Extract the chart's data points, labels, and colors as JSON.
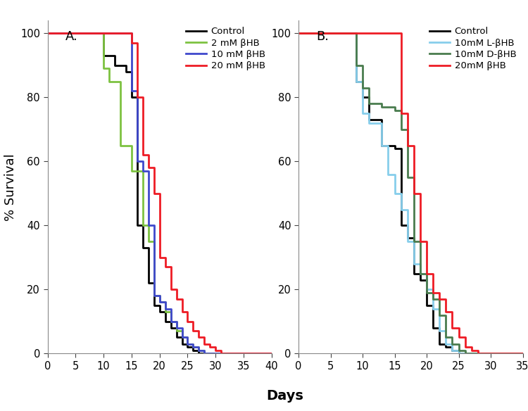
{
  "panel_A": {
    "title": "A.",
    "curves": [
      {
        "label": "Control",
        "color": "#000000",
        "lw": 2.0,
        "x": [
          0,
          10,
          10,
          12,
          12,
          14,
          14,
          15,
          15,
          16,
          16,
          17,
          17,
          18,
          18,
          19,
          19,
          20,
          20,
          21,
          21,
          22,
          22,
          23,
          23,
          24,
          24,
          25,
          25,
          26,
          26,
          27,
          27,
          28,
          28,
          29,
          29,
          30,
          30,
          40
        ],
        "y": [
          100,
          100,
          93,
          93,
          90,
          90,
          88,
          88,
          80,
          80,
          40,
          40,
          33,
          33,
          22,
          22,
          15,
          15,
          13,
          13,
          10,
          10,
          8,
          8,
          5,
          5,
          3,
          3,
          2,
          2,
          1,
          1,
          0,
          0,
          0,
          0,
          0,
          0,
          0,
          0
        ]
      },
      {
        "label": "2 mM βHB",
        "color": "#7dc241",
        "lw": 2.0,
        "x": [
          0,
          10,
          10,
          11,
          11,
          13,
          13,
          15,
          15,
          17,
          17,
          18,
          18,
          19,
          19,
          20,
          20,
          21,
          21,
          22,
          22,
          23,
          23,
          24,
          24,
          25,
          25,
          26,
          26,
          27,
          27,
          28,
          28,
          29,
          29,
          30,
          30,
          31,
          31,
          32,
          32,
          40
        ],
        "y": [
          100,
          100,
          89,
          89,
          85,
          85,
          65,
          65,
          57,
          57,
          40,
          40,
          35,
          35,
          18,
          18,
          16,
          16,
          13,
          13,
          10,
          10,
          7,
          7,
          5,
          5,
          3,
          3,
          2,
          2,
          1,
          1,
          0,
          0,
          0,
          0,
          0,
          0,
          0,
          0,
          0,
          0
        ]
      },
      {
        "label": "10 mM βHB",
        "color": "#3f48cc",
        "lw": 2.0,
        "x": [
          0,
          15,
          15,
          16,
          16,
          17,
          17,
          18,
          18,
          19,
          19,
          20,
          20,
          21,
          21,
          22,
          22,
          23,
          23,
          24,
          24,
          25,
          25,
          26,
          26,
          27,
          27,
          28,
          28,
          29,
          29,
          30,
          30,
          31,
          31,
          32,
          32,
          40
        ],
        "y": [
          100,
          100,
          82,
          82,
          60,
          60,
          57,
          57,
          40,
          40,
          18,
          18,
          16,
          16,
          14,
          14,
          10,
          10,
          8,
          8,
          5,
          5,
          3,
          3,
          2,
          2,
          1,
          1,
          0,
          0,
          0,
          0,
          0,
          0,
          0,
          0,
          0,
          0
        ]
      },
      {
        "label": "20 mM βHB",
        "color": "#ee1c25",
        "lw": 2.0,
        "x": [
          0,
          15,
          15,
          16,
          16,
          17,
          17,
          18,
          18,
          19,
          19,
          20,
          20,
          21,
          21,
          22,
          22,
          23,
          23,
          24,
          24,
          25,
          25,
          26,
          26,
          27,
          27,
          28,
          28,
          29,
          29,
          30,
          30,
          31,
          31,
          32,
          32,
          33,
          33,
          34,
          34,
          35,
          35,
          40
        ],
        "y": [
          100,
          100,
          97,
          97,
          80,
          80,
          62,
          62,
          58,
          58,
          50,
          50,
          30,
          30,
          27,
          27,
          20,
          20,
          17,
          17,
          13,
          13,
          10,
          10,
          7,
          7,
          5,
          5,
          3,
          3,
          2,
          2,
          1,
          1,
          0,
          0,
          0,
          0,
          0,
          0,
          0,
          0,
          0,
          0
        ]
      }
    ],
    "xlim": [
      0,
      40
    ],
    "ylim": [
      0,
      104
    ],
    "xticks": [
      0,
      5,
      10,
      15,
      20,
      25,
      30,
      35,
      40
    ],
    "yticks": [
      0,
      20,
      40,
      60,
      80,
      100
    ]
  },
  "panel_B": {
    "title": "B.",
    "curves": [
      {
        "label": "Control",
        "color": "#000000",
        "lw": 2.0,
        "x": [
          0,
          9,
          9,
          10,
          10,
          11,
          11,
          13,
          13,
          15,
          15,
          16,
          16,
          17,
          17,
          18,
          18,
          19,
          19,
          20,
          20,
          21,
          21,
          22,
          22,
          23,
          23,
          24,
          24,
          25,
          25,
          35
        ],
        "y": [
          100,
          100,
          85,
          85,
          80,
          80,
          73,
          73,
          65,
          65,
          64,
          64,
          40,
          40,
          36,
          36,
          25,
          25,
          23,
          23,
          15,
          15,
          8,
          8,
          3,
          3,
          2,
          2,
          1,
          1,
          0,
          0
        ]
      },
      {
        "label": "10mM L-βHB",
        "color": "#87ceeb",
        "lw": 2.0,
        "x": [
          0,
          9,
          9,
          10,
          10,
          11,
          11,
          13,
          13,
          14,
          14,
          15,
          15,
          16,
          16,
          17,
          17,
          18,
          18,
          19,
          19,
          20,
          20,
          21,
          21,
          22,
          22,
          23,
          23,
          24,
          24,
          25,
          25,
          26,
          26,
          27,
          27,
          35
        ],
        "y": [
          100,
          100,
          85,
          85,
          75,
          75,
          72,
          72,
          65,
          65,
          56,
          56,
          50,
          50,
          45,
          45,
          35,
          35,
          28,
          28,
          25,
          25,
          20,
          20,
          14,
          14,
          7,
          7,
          3,
          3,
          1,
          1,
          0,
          0,
          0,
          0,
          0,
          0
        ]
      },
      {
        "label": "10mM D-βHB",
        "color": "#4a7c4e",
        "lw": 2.0,
        "x": [
          0,
          9,
          9,
          10,
          10,
          11,
          11,
          13,
          13,
          15,
          15,
          16,
          16,
          17,
          17,
          18,
          18,
          19,
          19,
          20,
          20,
          21,
          21,
          22,
          22,
          23,
          23,
          24,
          24,
          25,
          25,
          26,
          26,
          27,
          27,
          35
        ],
        "y": [
          100,
          100,
          90,
          90,
          83,
          83,
          78,
          78,
          77,
          77,
          76,
          76,
          70,
          70,
          55,
          55,
          35,
          35,
          25,
          25,
          19,
          19,
          17,
          17,
          12,
          12,
          5,
          5,
          3,
          3,
          1,
          1,
          0,
          0,
          0,
          0
        ]
      },
      {
        "label": "20mM βHB",
        "color": "#ee1c25",
        "lw": 2.0,
        "x": [
          0,
          9,
          9,
          16,
          16,
          17,
          17,
          18,
          18,
          19,
          19,
          20,
          20,
          21,
          21,
          22,
          22,
          23,
          23,
          24,
          24,
          25,
          25,
          26,
          26,
          27,
          27,
          28,
          28,
          30,
          30,
          31,
          31,
          35
        ],
        "y": [
          100,
          100,
          100,
          100,
          75,
          75,
          65,
          65,
          50,
          50,
          35,
          35,
          25,
          25,
          19,
          19,
          17,
          17,
          13,
          13,
          8,
          8,
          5,
          5,
          2,
          2,
          1,
          1,
          0,
          0,
          0,
          0,
          0,
          0
        ]
      }
    ],
    "xlim": [
      0,
      35
    ],
    "ylim": [
      0,
      104
    ],
    "xticks": [
      0,
      5,
      10,
      15,
      20,
      25,
      30,
      35
    ],
    "yticks": [
      0,
      20,
      40,
      60,
      80,
      100
    ]
  },
  "xlabel": "Days",
  "ylabel": "% Survival",
  "background_color": "#ffffff",
  "legend_fontsize": 9.5,
  "tick_fontsize": 10.5,
  "label_fontsize": 13,
  "title_fontsize": 13
}
